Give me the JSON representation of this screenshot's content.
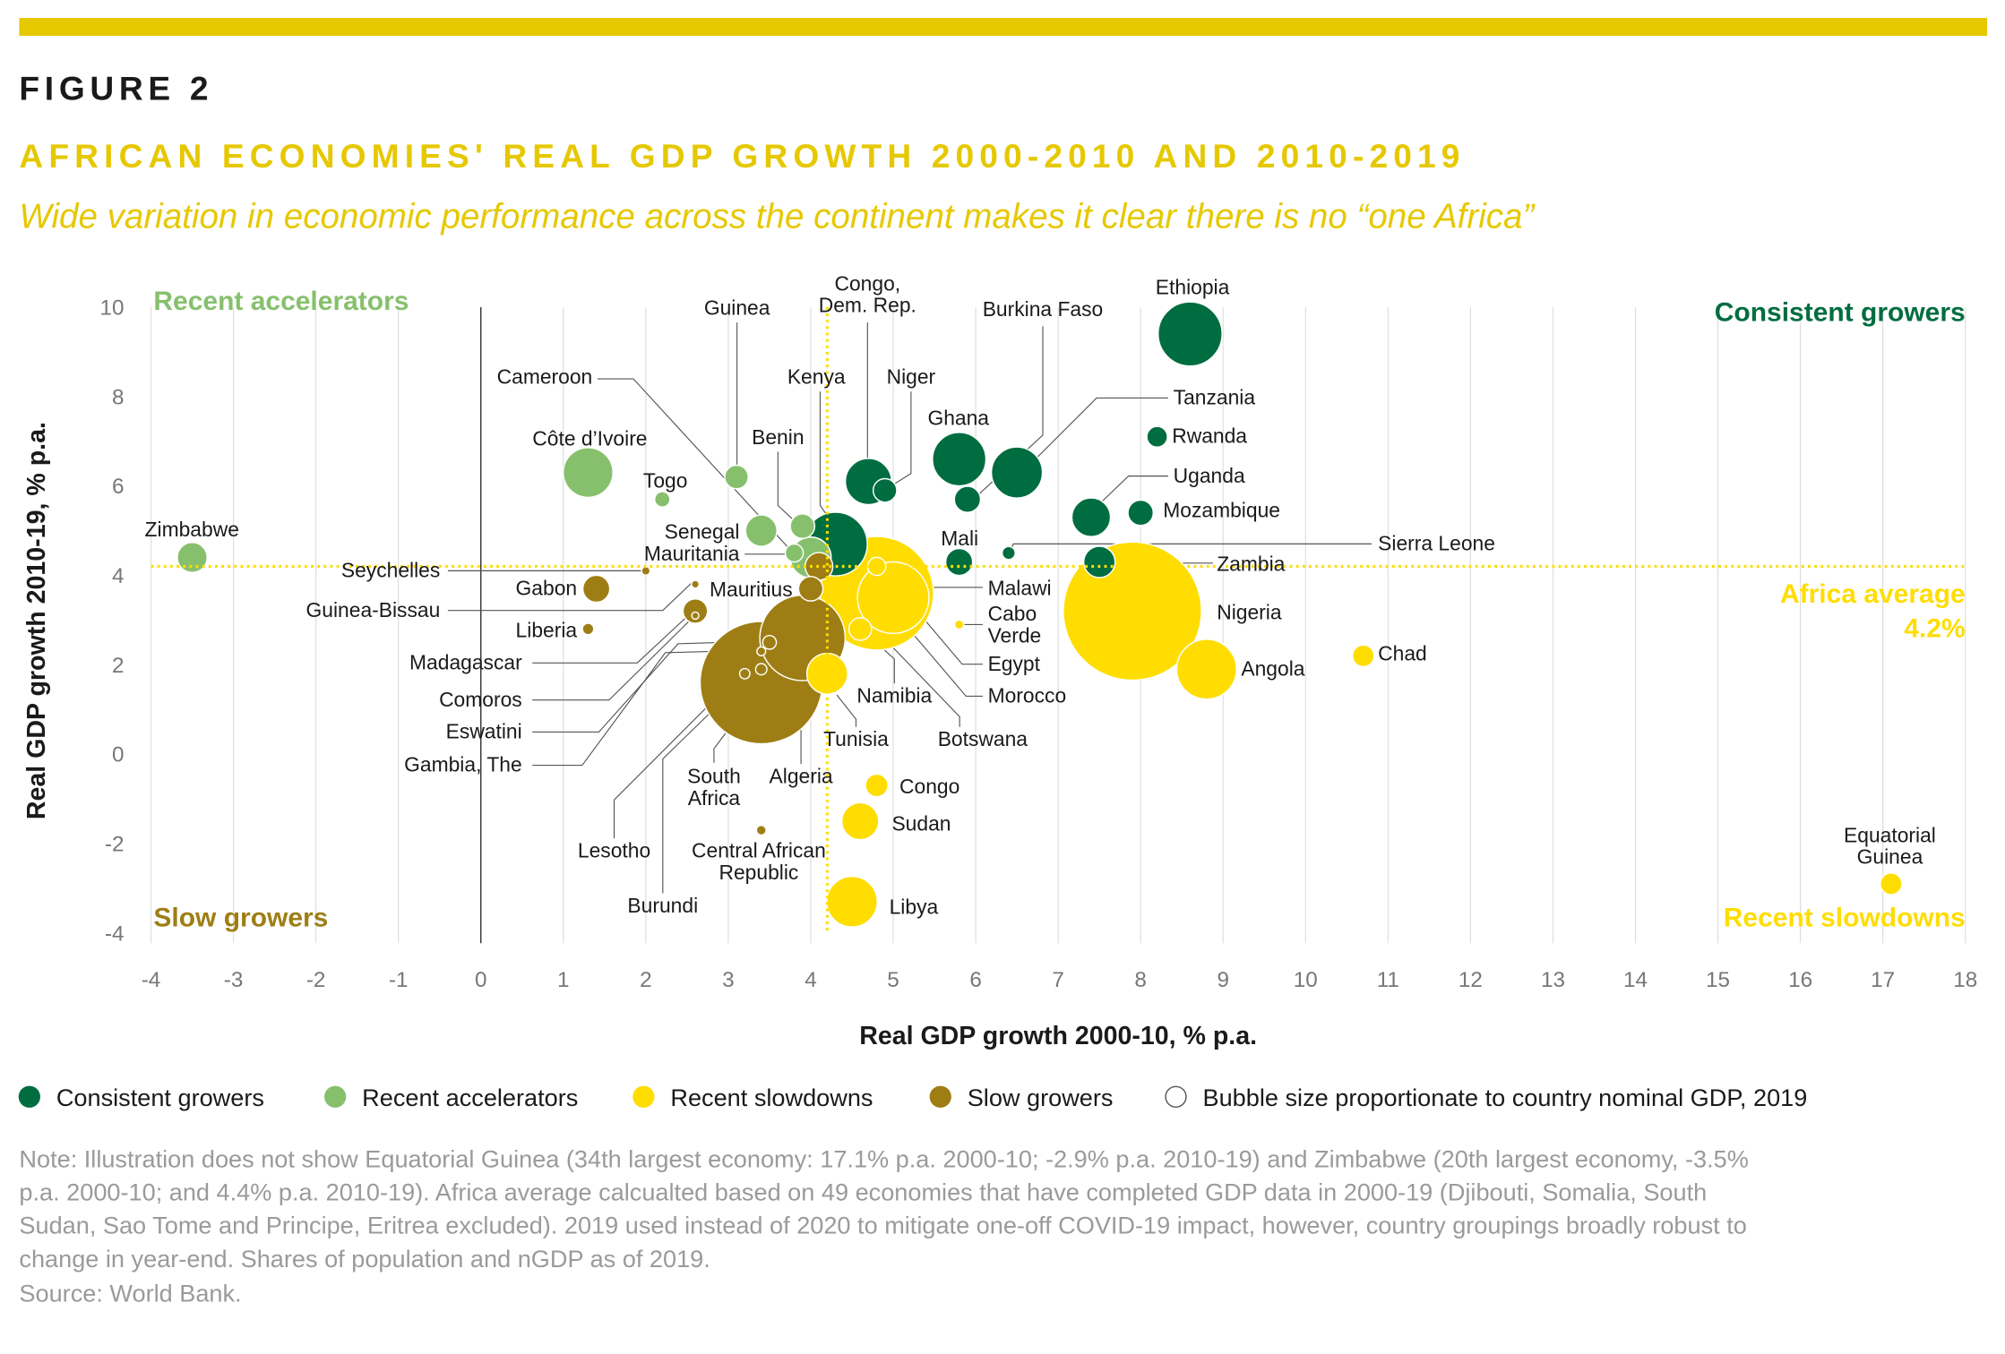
{
  "figure_label": "FIGURE 2",
  "title": "AFRICAN ECONOMIES' REAL GDP GROWTH 2000-2010 AND 2010-2019",
  "subtitle": "Wide variation in economic performance across the continent makes it clear there is no “one Africa”",
  "colors": {
    "accent_bar": "#e6c800",
    "consistent_growers": "#006d40",
    "recent_accelerators": "#86c06d",
    "recent_slowdowns": "#ffdd00",
    "slow_growers": "#9e7e14",
    "average_line": "#ffdd00"
  },
  "chart_data": {
    "type": "scatter",
    "subtype": "bubble",
    "xlabel": "Real GDP growth 2000-10, % p.a.",
    "ylabel": "Real GDP growth 2010-19, % p.a.",
    "xlim": [
      -4,
      18
    ],
    "ylim": [
      -4,
      10
    ],
    "x_ticks": [
      "-4",
      "-3",
      "-2",
      "-1",
      "0",
      "1",
      "2",
      "3",
      "4",
      "5",
      "6",
      "7",
      "8",
      "9",
      "10",
      "11",
      "12",
      "13",
      "14",
      "15",
      "16",
      "17",
      "18"
    ],
    "y_ticks": [
      "10",
      "8",
      "6",
      "4",
      "2",
      "0",
      "-2",
      "-4"
    ],
    "grid": "vertical",
    "bubble_size": "nominal GDP 2019 (USD bn, approximate)",
    "average": {
      "x": 4.2,
      "y": 4.2,
      "label_line1": "Africa average",
      "label_line2": "4.2%"
    },
    "quadrants": {
      "top_left": "Recent accelerators",
      "top_right": "Consistent growers",
      "bottom_left": "Slow growers",
      "bottom_right": "Recent slowdowns"
    },
    "points": [
      {
        "country": "Ethiopia",
        "group": "consistent_growers",
        "x": 8.6,
        "y": 9.4,
        "gdp": 96
      },
      {
        "country": "Rwanda",
        "group": "consistent_growers",
        "x": 8.2,
        "y": 7.1,
        "gdp": 10
      },
      {
        "country": "Ghana",
        "group": "consistent_growers",
        "x": 5.8,
        "y": 6.6,
        "gdp": 67
      },
      {
        "country": "Burkina Faso",
        "group": "consistent_growers",
        "x": 5.9,
        "y": 5.7,
        "gdp": 16
      },
      {
        "country": "Tanzania",
        "group": "consistent_growers",
        "x": 6.5,
        "y": 6.3,
        "gdp": 61
      },
      {
        "country": "Kenya",
        "group": "consistent_growers",
        "x": 4.3,
        "y": 4.7,
        "gdp": 95
      },
      {
        "country": "Congo,\nDem. Rep.",
        "group": "consistent_growers",
        "x": 4.7,
        "y": 6.1,
        "gdp": 50
      },
      {
        "country": "Niger",
        "group": "consistent_growers",
        "x": 4.9,
        "y": 5.9,
        "gdp": 13
      },
      {
        "country": "Uganda",
        "group": "consistent_growers",
        "x": 7.4,
        "y": 5.3,
        "gdp": 35
      },
      {
        "country": "Mozambique",
        "group": "consistent_growers",
        "x": 8.0,
        "y": 5.4,
        "gdp": 15
      },
      {
        "country": "Mali",
        "group": "consistent_growers",
        "x": 5.8,
        "y": 4.3,
        "gdp": 17
      },
      {
        "country": "Sierra Leone",
        "group": "consistent_growers",
        "x": 6.4,
        "y": 4.5,
        "gdp": 4
      },
      {
        "country": "Zambia",
        "group": "consistent_growers",
        "x": 7.5,
        "y": 4.3,
        "gdp": 23
      },
      {
        "country": "Zimbabwe",
        "group": "recent_accelerators",
        "x": -3.5,
        "y": 4.4,
        "gdp": 21
      },
      {
        "country": "Côte d’Ivoire",
        "group": "recent_accelerators",
        "x": 1.3,
        "y": 6.3,
        "gdp": 58
      },
      {
        "country": "Togo",
        "group": "recent_accelerators",
        "x": 2.2,
        "y": 5.7,
        "gdp": 5.5
      },
      {
        "country": "Guinea",
        "group": "recent_accelerators",
        "x": 3.1,
        "y": 6.2,
        "gdp": 13
      },
      {
        "country": "Senegal",
        "group": "recent_accelerators",
        "x": 3.4,
        "y": 5.0,
        "gdp": 23
      },
      {
        "country": "Benin",
        "group": "recent_accelerators",
        "x": 3.9,
        "y": 5.1,
        "gdp": 14
      },
      {
        "country": "Cameroon",
        "group": "recent_accelerators",
        "x": 4.0,
        "y": 4.4,
        "gdp": 39
      },
      {
        "country": "Mauritania",
        "group": "recent_accelerators",
        "x": 3.8,
        "y": 4.5,
        "gdp": 7.6
      },
      {
        "country": "Seychelles",
        "group": "slow_growers",
        "x": 2.0,
        "y": 4.1,
        "gdp": 1.7
      },
      {
        "country": "Gabon",
        "group": "slow_growers",
        "x": 1.4,
        "y": 3.7,
        "gdp": 17
      },
      {
        "country": "Guinea-Bissau",
        "group": "slow_growers",
        "x": 2.6,
        "y": 3.8,
        "gdp": 1.4
      },
      {
        "country": "Liberia",
        "group": "slow_growers",
        "x": 1.3,
        "y": 2.8,
        "gdp": 3
      },
      {
        "country": "Madagascar",
        "group": "slow_growers",
        "x": 2.6,
        "y": 3.2,
        "gdp": 14
      },
      {
        "country": "Comoros",
        "group": "slow_growers",
        "x": 2.6,
        "y": 3.1,
        "gdp": 1.2
      },
      {
        "country": "Mauritius",
        "group": "slow_growers",
        "x": 4.0,
        "y": 3.7,
        "gdp": 14
      },
      {
        "country": "Botswana",
        "group": "slow_growers",
        "x": 4.1,
        "y": 4.2,
        "gdp": 18
      },
      {
        "country": "South\nAfrica",
        "group": "slow_growers",
        "x": 3.4,
        "y": 1.6,
        "gdp": 351
      },
      {
        "country": "Algeria",
        "group": "slow_growers",
        "x": 3.9,
        "y": 2.6,
        "gdp": 171
      },
      {
        "country": "Eswatini",
        "group": "slow_growers",
        "x": 3.5,
        "y": 2.5,
        "gdp": 4.4
      },
      {
        "country": "Gambia, The",
        "group": "slow_growers",
        "x": 3.4,
        "y": 2.3,
        "gdp": 1.8
      },
      {
        "country": "Lesotho",
        "group": "slow_growers",
        "x": 3.2,
        "y": 1.8,
        "gdp": 2.5
      },
      {
        "country": "Burundi",
        "group": "slow_growers",
        "x": 3.4,
        "y": 1.9,
        "gdp": 3
      },
      {
        "country": "Central African\nRepublic",
        "group": "slow_growers",
        "x": 3.4,
        "y": -1.7,
        "gdp": 2.2
      },
      {
        "country": "Nigeria",
        "group": "recent_slowdowns",
        "x": 7.9,
        "y": 3.2,
        "gdp": 448
      },
      {
        "country": "Angola",
        "group": "recent_slowdowns",
        "x": 8.8,
        "y": 1.9,
        "gdp": 84
      },
      {
        "country": "Egypt",
        "group": "recent_slowdowns",
        "x": 4.8,
        "y": 3.6,
        "gdp": 303
      },
      {
        "country": "Morocco",
        "group": "recent_slowdowns",
        "x": 5.0,
        "y": 3.5,
        "gdp": 120
      },
      {
        "country": "Malawi",
        "group": "recent_slowdowns",
        "x": 4.8,
        "y": 4.2,
        "gdp": 7.7
      },
      {
        "country": "Namibia",
        "group": "recent_slowdowns",
        "x": 4.6,
        "y": 2.8,
        "gdp": 12
      },
      {
        "country": "Tunisia",
        "group": "recent_slowdowns",
        "x": 4.2,
        "y": 1.8,
        "gdp": 39
      },
      {
        "country": "Cabo\nVerde",
        "group": "recent_slowdowns",
        "x": 5.8,
        "y": 2.9,
        "gdp": 2
      },
      {
        "country": "Chad",
        "group": "recent_slowdowns",
        "x": 10.7,
        "y": 2.2,
        "gdp": 11
      },
      {
        "country": "Congo",
        "group": "recent_slowdowns",
        "x": 4.8,
        "y": -0.7,
        "gdp": 12
      },
      {
        "country": "Sudan",
        "group": "recent_slowdowns",
        "x": 4.6,
        "y": -1.5,
        "gdp": 32
      },
      {
        "country": "Libya",
        "group": "recent_slowdowns",
        "x": 4.5,
        "y": -3.3,
        "gdp": 60
      },
      {
        "country": "Equatorial\nGuinea",
        "group": "recent_slowdowns",
        "x": 17.1,
        "y": -2.9,
        "gdp": 11
      }
    ],
    "legend": [
      {
        "key": "consistent_growers",
        "label": "Consistent growers"
      },
      {
        "key": "recent_accelerators",
        "label": "Recent accelerators"
      },
      {
        "key": "recent_slowdowns",
        "label": "Recent slowdowns"
      },
      {
        "key": "slow_growers",
        "label": "Slow growers"
      },
      {
        "key": "size",
        "label": "Bubble size proportionate to country nominal GDP, 2019"
      }
    ],
    "legend_position": "bottom"
  },
  "note_lines": [
    "Note: Illustration does not show Equatorial Guinea (34th largest economy: 17.1% p.a. 2000-10; -2.9% p.a. 2010-19) and Zimbabwe (20th largest economy, -3.5%",
    "p.a. 2000-10; and 4.4% p.a. 2010-19). Africa average calcualted based on 49 economies that have completed GDP data in 2000-19 (Djibouti, Somalia, South",
    "Sudan, Sao Tome and Principe, Eritrea excluded). 2019 used instead of 2020 to mitigate one-off COVID-19 impact, however, country groupings broadly robust to",
    "change in year-end. Shares of population and nGDP as of 2019."
  ],
  "source": "Source: World Bank."
}
